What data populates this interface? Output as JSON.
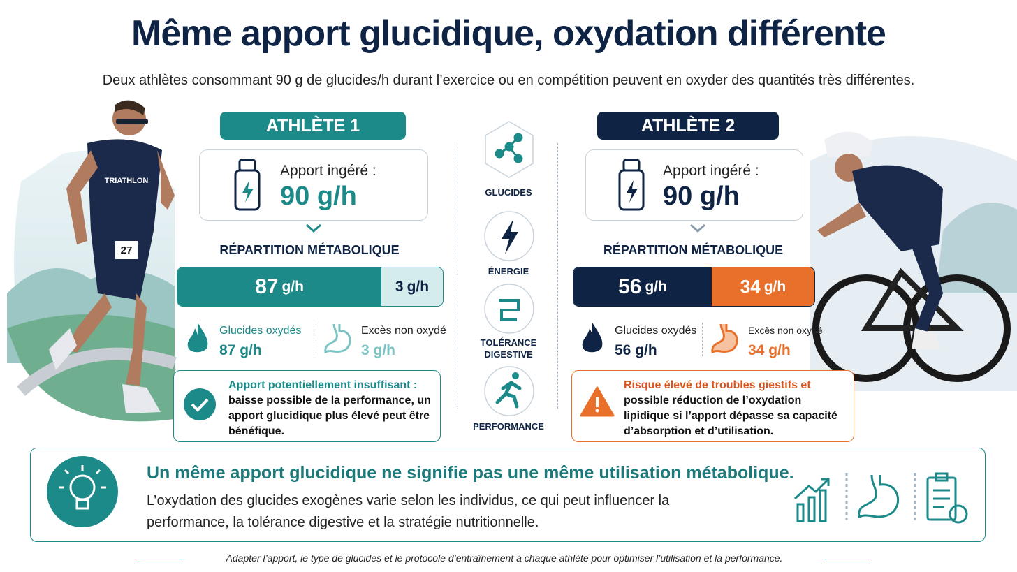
{
  "header": {
    "title": "Même apport glucidique, oxydation différente",
    "subtitle": "Deux athlètes consommant 90 g de glucides/h durant l’exercice ou en compétition peuvent en oxyder des quantités très différentes."
  },
  "illustrations": {
    "jersey": "TRIATHLON",
    "bib": "27"
  },
  "athletes": [
    {
      "name": "ATHLÈTE 1",
      "intake_label": "Apport ingéré :",
      "intake": "90 g/h",
      "breakdown_title": "RÉPARTITION MÉTABOLIQUE",
      "oxidized": {
        "value": "87",
        "unit": "g/h"
      },
      "excess": {
        "value": "3",
        "unit": "g/h"
      },
      "legend": [
        {
          "label": "Glucides oxydés",
          "value": "87 g/h"
        },
        {
          "label": "Excès non oxydé",
          "value": "3 g/h"
        }
      ],
      "note": {
        "title": "Apport potentiellement insuffisant :",
        "text": "baisse possible de la performance, un apport glucidique plus élevé peut être bénéfique."
      }
    },
    {
      "name": "ATHLÈTE 2",
      "intake_label": "Apport ingéré :",
      "intake": "90 g/h",
      "breakdown_title": "RÉPARTITION MÉTABOLIQUE",
      "oxidized": {
        "value": "56",
        "unit": "g/h"
      },
      "excess": {
        "value": "34",
        "unit": "g/h"
      },
      "legend": [
        {
          "label": "Glucides oxydés",
          "value": "56 g/h"
        },
        {
          "label": "Excès non oxydé",
          "value": "34 g/h"
        }
      ],
      "note": {
        "title": "Risque élevé de troubles giestifs et",
        "text": "possible réduction de l’oxydation lipidique si l’apport dépasse sa capacité d’absorption et d’utilisation."
      }
    }
  ],
  "center": {
    "items": [
      "GLUCIDES",
      "ÉNERGIE",
      "TOLÉRANCE DIGESTIVE",
      "PERFORMANCE"
    ]
  },
  "summary": {
    "title": "Un même apport glucidique ne signifie pas une même utilisation métabolique.",
    "text": "L’oxydation des glucides exogènes varie selon les individus, ce qui peut influencer la performance, la tolérance digestive et la stratégie nutritionnelle."
  },
  "footer": "Adapter l’apport, le type de glucides et le protocole d’entraînement à chaque athlète pour optimiser l’utilisation et la performance."
}
